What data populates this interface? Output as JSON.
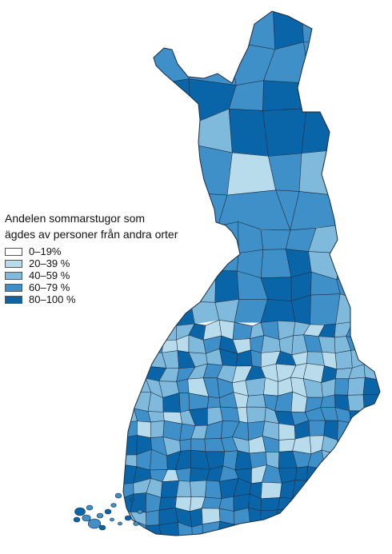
{
  "legend": {
    "title_line1": "Andelen sommarstugor som",
    "title_line2": "ägdes av personer från andra orter",
    "classes": [
      {
        "label": "0–19%",
        "color": "#ffffff"
      },
      {
        "label": "20–39 %",
        "color": "#b9dcec"
      },
      {
        "label": "40–59 %",
        "color": "#7fb9dc"
      },
      {
        "label": "60–79 %",
        "color": "#3f8fc8"
      },
      {
        "label": "80–100 %",
        "color": "#0a65a8"
      }
    ]
  },
  "map": {
    "region": "Finland",
    "border_color": "#1c2a3a"
  }
}
